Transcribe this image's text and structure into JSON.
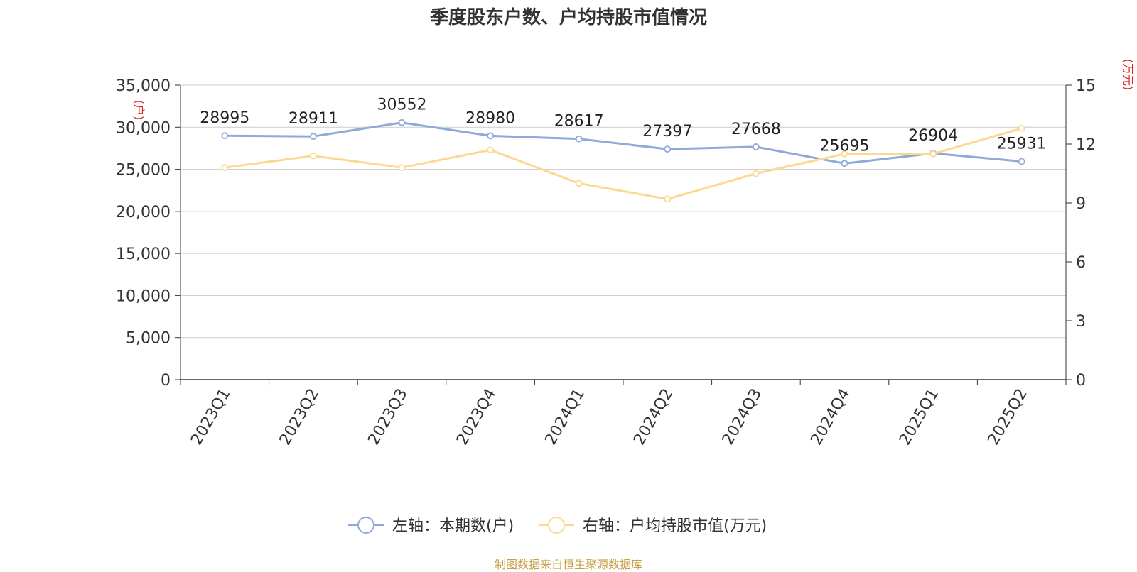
{
  "title": "季度股东户数、户均持股市值情况",
  "footer": "制图数据来自恒生聚源数据库",
  "colors": {
    "series_left": "#8eaad8",
    "series_right": "#fcd993",
    "axis_unit": "#e02020",
    "grid": "#cccccc",
    "axis": "#333333",
    "footer": "#c8a04a"
  },
  "chart_data": {
    "type": "line",
    "categories": [
      "2023Q1",
      "2023Q2",
      "2023Q3",
      "2023Q4",
      "2024Q1",
      "2024Q2",
      "2024Q3",
      "2024Q4",
      "2025Q1",
      "2025Q2"
    ],
    "y_left": {
      "unit_label": "(户)",
      "range": [
        0,
        35000
      ],
      "ticks": [
        0,
        5000,
        10000,
        15000,
        20000,
        25000,
        30000,
        35000
      ],
      "tick_labels": [
        "0",
        "5,000",
        "10,000",
        "15,000",
        "20,000",
        "25,000",
        "30,000",
        "35,000"
      ]
    },
    "y_right": {
      "unit_label": "(万元)",
      "range": [
        0,
        15
      ],
      "ticks": [
        0,
        3,
        6,
        9,
        12,
        15
      ],
      "tick_labels": [
        "0",
        "3",
        "6",
        "9",
        "12",
        "15"
      ]
    },
    "series": [
      {
        "name": "左轴：本期数(户)",
        "axis": "left",
        "values": [
          28995,
          28911,
          30552,
          28980,
          28617,
          27397,
          27668,
          25695,
          26904,
          25931
        ],
        "data_labels": [
          "28995",
          "28911",
          "30552",
          "28980",
          "28617",
          "27397",
          "27668",
          "25695",
          "26904",
          "25931"
        ]
      },
      {
        "name": "右轴：户均持股市值(万元)",
        "axis": "right",
        "values": [
          10.8,
          11.4,
          10.8,
          11.7,
          10.0,
          9.2,
          10.5,
          11.5,
          11.5,
          12.8
        ]
      }
    ],
    "grid": true,
    "legend_position": "bottom"
  }
}
